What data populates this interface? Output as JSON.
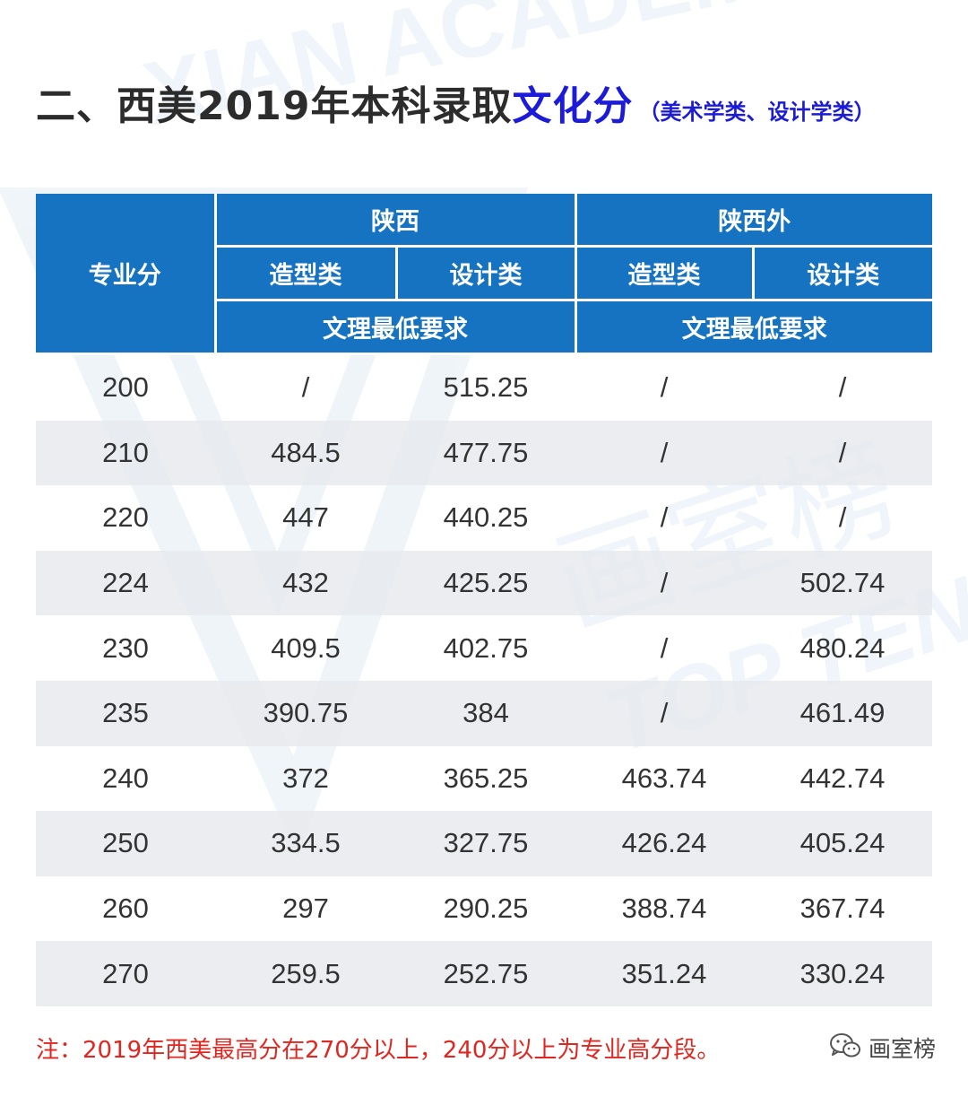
{
  "title": {
    "main": "二、西美2019年本科录取",
    "highlight": "文化分",
    "sub": "（美术学类、设计学类）"
  },
  "table": {
    "header": {
      "major_score": "专业分",
      "region_shaanxi": "陕西",
      "region_outside": "陕西外",
      "shaanxi_cat_1": "造型类",
      "shaanxi_cat_2": "设计类",
      "outside_cat_1": "造型类",
      "outside_cat_2": "设计类",
      "shaanxi_req": "文理最低要求",
      "outside_req": "文理最低要求"
    },
    "rows": [
      [
        "200",
        "/",
        "515.25",
        "/",
        "/"
      ],
      [
        "210",
        "484.5",
        "477.75",
        "/",
        "/"
      ],
      [
        "220",
        "447",
        "440.25",
        "/",
        "/"
      ],
      [
        "224",
        "432",
        "425.25",
        "/",
        "502.74"
      ],
      [
        "230",
        "409.5",
        "402.75",
        "/",
        "480.24"
      ],
      [
        "235",
        "390.75",
        "384",
        "/",
        "461.49"
      ],
      [
        "240",
        "372",
        "365.25",
        "463.74",
        "442.74"
      ],
      [
        "250",
        "334.5",
        "327.75",
        "426.24",
        "405.24"
      ],
      [
        "260",
        "297",
        "290.25",
        "388.74",
        "367.74"
      ],
      [
        "270",
        "259.5",
        "252.75",
        "351.24",
        "330.24"
      ]
    ]
  },
  "note": "注：2019年西美最高分在270分以上，240分以上为专业高分段。",
  "brand": {
    "icon": "wechat-icon",
    "label": "画室榜"
  },
  "watermark": {
    "lines": [
      "XIAN ACADEMY",
      "画室榜",
      "TOP TEN"
    ]
  },
  "colors": {
    "header_bg": "#1673c2",
    "title_highlight": "#1c1cd8",
    "note": "#e0261f",
    "row_alt": "#e7e9ed"
  }
}
